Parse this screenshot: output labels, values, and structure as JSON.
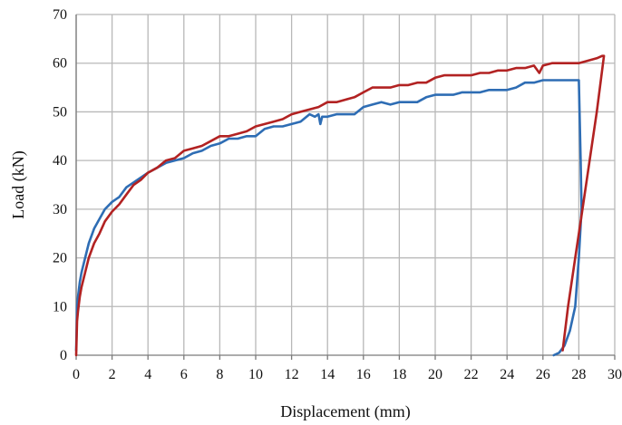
{
  "chart_data": {
    "type": "line",
    "title": "",
    "xlabel": "Displacement (mm)",
    "ylabel": "Load (kN)",
    "xlim": [
      0,
      30
    ],
    "ylim": [
      0,
      70
    ],
    "x_ticks": [
      "0",
      "2",
      "4",
      "6",
      "8",
      "10",
      "12",
      "14",
      "16",
      "18",
      "20",
      "22",
      "24",
      "26",
      "28",
      "30"
    ],
    "y_ticks": [
      "0",
      "10",
      "20",
      "30",
      "40",
      "50",
      "60",
      "70"
    ],
    "grid": true,
    "legend": "none",
    "series": [
      {
        "color": "#2e6db4",
        "x": [
          0,
          0.05,
          0.1,
          0.2,
          0.3,
          0.5,
          0.7,
          1.0,
          1.3,
          1.6,
          2.0,
          2.4,
          2.8,
          3.2,
          3.6,
          4.0,
          4.5,
          5.0,
          5.5,
          6.0,
          6.5,
          7.0,
          7.5,
          8.0,
          8.5,
          9.0,
          9.5,
          10.0,
          10.5,
          11.0,
          11.5,
          12.0,
          12.5,
          13.0,
          13.3,
          13.5,
          13.6,
          13.7,
          14.0,
          14.5,
          15.0,
          15.5,
          16.0,
          16.5,
          17.0,
          17.5,
          18.0,
          18.5,
          19.0,
          19.5,
          20.0,
          20.5,
          21.0,
          21.5,
          22.0,
          22.5,
          23.0,
          23.5,
          24.0,
          24.5,
          25.0,
          25.3,
          25.5,
          26.0,
          26.5,
          27.0,
          27.5,
          28.0,
          28.1,
          28.15,
          28.0,
          27.8,
          27.5,
          27.2,
          26.9,
          26.6
        ],
        "y": [
          1,
          10,
          12,
          15,
          17,
          20,
          23,
          26,
          28,
          30,
          31.5,
          32.5,
          34.5,
          35.5,
          36.5,
          37.5,
          38.5,
          39.5,
          40,
          40.5,
          41.5,
          42,
          43,
          43.5,
          44.5,
          44.5,
          45,
          45,
          46.5,
          47,
          47,
          47.5,
          48,
          49.5,
          49,
          49.5,
          47.5,
          49,
          49,
          49.5,
          49.5,
          49.5,
          51,
          51.5,
          52,
          51.5,
          52,
          52,
          52,
          53,
          53.5,
          53.5,
          53.5,
          54,
          54,
          54,
          54.5,
          54.5,
          54.5,
          55,
          56,
          56,
          56,
          56.5,
          56.5,
          56.5,
          56.5,
          56.5,
          40,
          30,
          20,
          10,
          5,
          2,
          0.5,
          0
        ]
      },
      {
        "color": "#b22222",
        "x": [
          0,
          0.05,
          0.1,
          0.2,
          0.3,
          0.5,
          0.7,
          1.0,
          1.3,
          1.6,
          2.0,
          2.4,
          2.8,
          3.2,
          3.6,
          4.0,
          4.5,
          5.0,
          5.5,
          6.0,
          6.5,
          7.0,
          7.5,
          8.0,
          8.5,
          9.0,
          9.5,
          10.0,
          10.5,
          11.0,
          11.5,
          12.0,
          12.5,
          13.0,
          13.5,
          14.0,
          14.5,
          15.0,
          15.5,
          16.0,
          16.5,
          17.0,
          17.5,
          18.0,
          18.5,
          19.0,
          19.5,
          20.0,
          20.5,
          21.0,
          21.5,
          22.0,
          22.5,
          23.0,
          23.5,
          24.0,
          24.5,
          25.0,
          25.5,
          25.8,
          26.0,
          26.5,
          27.0,
          27.5,
          28.0,
          28.5,
          29.0,
          29.3,
          29.4,
          29.0,
          28.6,
          28.2,
          27.8,
          27.4,
          27.1
        ],
        "y": [
          0,
          7,
          9,
          12,
          14,
          17,
          20,
          23,
          25,
          27.5,
          29.5,
          31,
          33,
          35,
          36,
          37.5,
          38.5,
          40,
          40.5,
          42,
          42.5,
          43,
          44,
          45,
          45,
          45.5,
          46,
          47,
          47.5,
          48,
          48.5,
          49.5,
          50,
          50.5,
          51,
          52,
          52,
          52.5,
          53,
          54,
          55,
          55,
          55,
          55.5,
          55.5,
          56,
          56,
          57,
          57.5,
          57.5,
          57.5,
          57.5,
          58,
          58,
          58.5,
          58.5,
          59,
          59,
          59.5,
          58,
          59.5,
          60,
          60,
          60,
          60,
          60.5,
          61,
          61.5,
          61.5,
          50,
          40,
          30,
          20,
          10,
          1
        ]
      }
    ]
  }
}
